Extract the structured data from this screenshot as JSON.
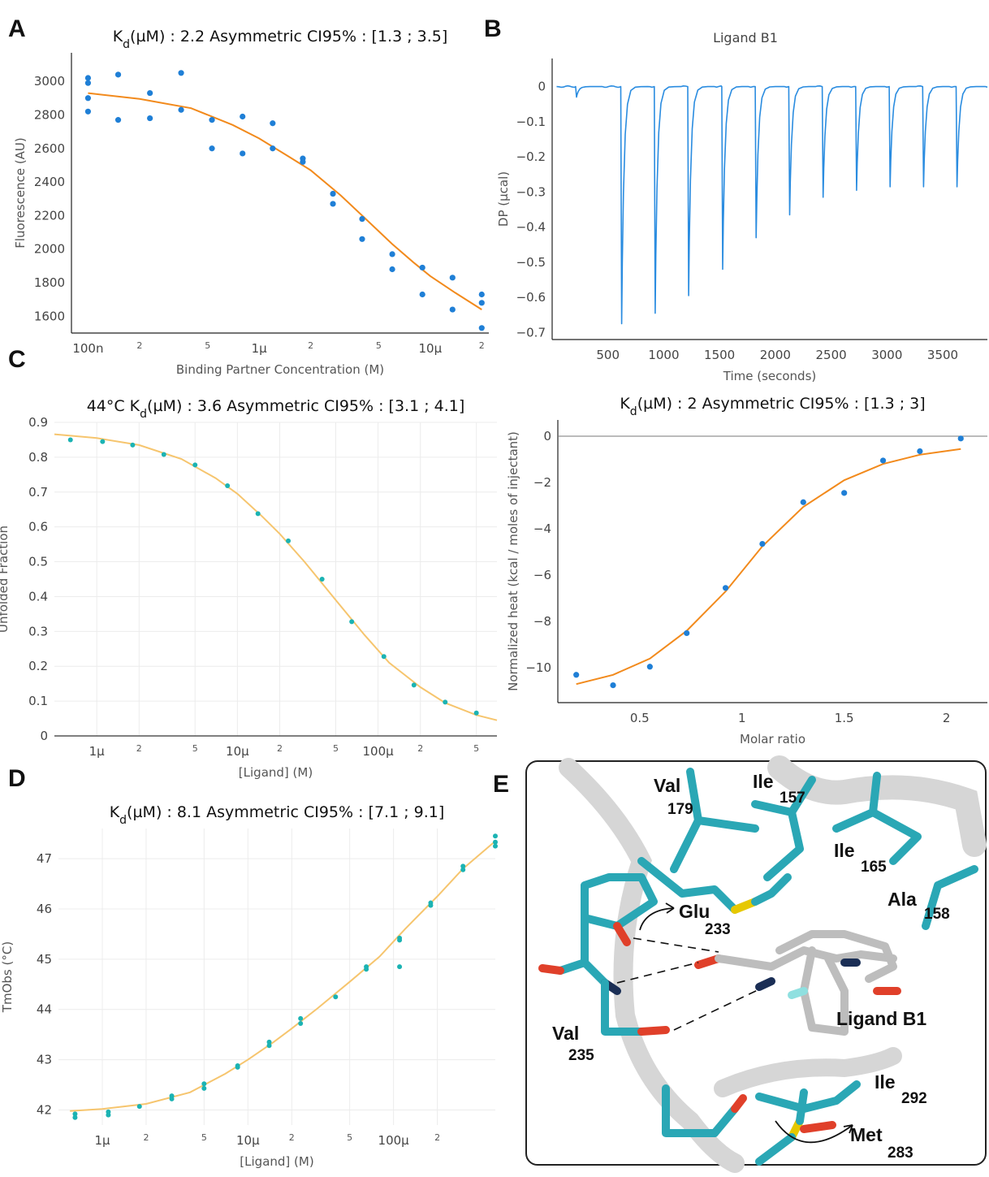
{
  "panels": {
    "a": "A",
    "b": "B",
    "c": "C",
    "d": "D",
    "e": "E"
  },
  "chart_data": [
    {
      "id": "A",
      "type": "scatter",
      "title_pre": "K",
      "title_sub": "d",
      "title_post": "(µM) : 2.2 Asymmetric CI95% : [1.3 ; 3.5]",
      "xlabel": "Binding Partner Concentration (M)",
      "ylabel": "Fluorescence (AU)",
      "x_scale": "log",
      "xlim": [
        8e-08,
        2.2e-05
      ],
      "ylim": [
        1500,
        3170
      ],
      "x_major_ticks": [
        {
          "v": 1e-07,
          "t": "100n"
        },
        {
          "v": 1e-06,
          "t": "1µ"
        },
        {
          "v": 1e-05,
          "t": "10µ"
        }
      ],
      "x_minor_ticks": [
        {
          "v": 2e-07,
          "t": "2"
        },
        {
          "v": 5e-07,
          "t": "5"
        },
        {
          "v": 2e-06,
          "t": "2"
        },
        {
          "v": 5e-06,
          "t": "5"
        },
        {
          "v": 2e-05,
          "t": "2"
        }
      ],
      "y_ticks": [
        {
          "v": 1600,
          "t": "1600"
        },
        {
          "v": 1800,
          "t": "1800"
        },
        {
          "v": 2000,
          "t": "2000"
        },
        {
          "v": 2200,
          "t": "2200"
        },
        {
          "v": 2400,
          "t": "2400"
        },
        {
          "v": 2600,
          "t": "2600"
        },
        {
          "v": 2800,
          "t": "2800"
        },
        {
          "v": 3000,
          "t": "3000"
        }
      ],
      "points": [
        [
          1e-07,
          3020
        ],
        [
          1e-07,
          2990
        ],
        [
          1e-07,
          2900
        ],
        [
          1e-07,
          2820
        ],
        [
          1.5e-07,
          3040
        ],
        [
          1.5e-07,
          2770
        ],
        [
          2.3e-07,
          2930
        ],
        [
          2.3e-07,
          2780
        ],
        [
          3.5e-07,
          3050
        ],
        [
          3.5e-07,
          2830
        ],
        [
          5.3e-07,
          2770
        ],
        [
          5.3e-07,
          2600
        ],
        [
          8e-07,
          2790
        ],
        [
          8e-07,
          2570
        ],
        [
          1.2e-06,
          2750
        ],
        [
          1.2e-06,
          2600
        ],
        [
          1.8e-06,
          2540
        ],
        [
          1.8e-06,
          2520
        ],
        [
          2.7e-06,
          2330
        ],
        [
          2.7e-06,
          2270
        ],
        [
          4e-06,
          2180
        ],
        [
          4e-06,
          2060
        ],
        [
          6e-06,
          1970
        ],
        [
          6e-06,
          1880
        ],
        [
          9e-06,
          1890
        ],
        [
          9e-06,
          1730
        ],
        [
          1.35e-05,
          1830
        ],
        [
          1.35e-05,
          1640
        ],
        [
          2e-05,
          1730
        ],
        [
          2e-05,
          1680
        ],
        [
          2e-05,
          1530
        ]
      ],
      "fit": [
        [
          1e-07,
          2930
        ],
        [
          2e-07,
          2895
        ],
        [
          4e-07,
          2840
        ],
        [
          7e-07,
          2740
        ],
        [
          1e-06,
          2660
        ],
        [
          1.5e-06,
          2550
        ],
        [
          2e-06,
          2470
        ],
        [
          3e-06,
          2320
        ],
        [
          4e-06,
          2200
        ],
        [
          6e-06,
          2030
        ],
        [
          8e-06,
          1920
        ],
        [
          1e-05,
          1840
        ],
        [
          1.4e-05,
          1740
        ],
        [
          2e-05,
          1640
        ]
      ],
      "point_color": "#1f7fd6",
      "fit_color": "#f28a1c"
    },
    {
      "id": "B-thermogram",
      "type": "line",
      "title": "Ligand B1",
      "xlabel": "Time (seconds)",
      "ylabel": "DP (µcal)",
      "xlim": [
        0,
        3900
      ],
      "ylim": [
        -0.72,
        0.08
      ],
      "x_ticks": [
        {
          "v": 500,
          "t": "500"
        },
        {
          "v": 1000,
          "t": "1000"
        },
        {
          "v": 1500,
          "t": "1500"
        },
        {
          "v": 2000,
          "t": "2000"
        },
        {
          "v": 2500,
          "t": "2500"
        },
        {
          "v": 3000,
          "t": "3000"
        },
        {
          "v": 3500,
          "t": "3500"
        }
      ],
      "y_ticks": [
        {
          "v": 0,
          "t": "0"
        },
        {
          "v": -0.1,
          "t": "−0.1"
        },
        {
          "v": -0.2,
          "t": "−0.2"
        },
        {
          "v": -0.3,
          "t": "−0.3"
        },
        {
          "v": -0.4,
          "t": "−0.4"
        },
        {
          "v": -0.5,
          "t": "−0.5"
        },
        {
          "v": -0.6,
          "t": "−0.6"
        },
        {
          "v": -0.7,
          "t": "−0.7"
        }
      ],
      "injections": [
        {
          "t": 210,
          "depth": -0.03
        },
        {
          "t": 615,
          "depth": -0.675
        },
        {
          "t": 915,
          "depth": -0.645
        },
        {
          "t": 1215,
          "depth": -0.595
        },
        {
          "t": 1520,
          "depth": -0.52
        },
        {
          "t": 1820,
          "depth": -0.43
        },
        {
          "t": 2120,
          "depth": -0.365
        },
        {
          "t": 2420,
          "depth": -0.315
        },
        {
          "t": 2720,
          "depth": -0.295
        },
        {
          "t": 3020,
          "depth": -0.285
        },
        {
          "t": 3320,
          "depth": -0.285
        },
        {
          "t": 3620,
          "depth": -0.285
        }
      ],
      "line_color": "#2a8ce0"
    },
    {
      "id": "B-isotherm",
      "type": "scatter",
      "title_pre": "K",
      "title_sub": "d",
      "title_post": "(µM) : 2 Asymmetric CI95% : [1.3 ; 3]",
      "xlabel": "Molar ratio",
      "ylabel": "Normalized heat (kcal / moles of injectant)",
      "xlim": [
        0.1,
        2.2
      ],
      "ylim": [
        -11.5,
        0.7
      ],
      "x_ticks": [
        {
          "v": 0.5,
          "t": "0.5"
        },
        {
          "v": 1,
          "t": "1"
        },
        {
          "v": 1.5,
          "t": "1.5"
        },
        {
          "v": 2,
          "t": "2"
        }
      ],
      "y_ticks": [
        {
          "v": 0,
          "t": "0"
        },
        {
          "v": -2,
          "t": "−2"
        },
        {
          "v": -4,
          "t": "−4"
        },
        {
          "v": -6,
          "t": "−6"
        },
        {
          "v": -8,
          "t": "−8"
        },
        {
          "v": -10,
          "t": "−10"
        }
      ],
      "points": [
        [
          0.19,
          -10.3
        ],
        [
          0.37,
          -10.75
        ],
        [
          0.55,
          -9.95
        ],
        [
          0.73,
          -8.5
        ],
        [
          0.92,
          -6.55
        ],
        [
          1.1,
          -4.65
        ],
        [
          1.3,
          -2.85
        ],
        [
          1.5,
          -2.45
        ],
        [
          1.69,
          -1.05
        ],
        [
          1.87,
          -0.65
        ],
        [
          2.07,
          -0.1
        ]
      ],
      "fit": [
        [
          0.19,
          -10.7
        ],
        [
          0.37,
          -10.3
        ],
        [
          0.55,
          -9.6
        ],
        [
          0.73,
          -8.4
        ],
        [
          0.92,
          -6.7
        ],
        [
          1.1,
          -4.75
        ],
        [
          1.3,
          -3.05
        ],
        [
          1.5,
          -1.9
        ],
        [
          1.69,
          -1.2
        ],
        [
          1.87,
          -0.8
        ],
        [
          2.07,
          -0.55
        ]
      ],
      "point_color": "#1f7fd6",
      "fit_color": "#f28a1c"
    },
    {
      "id": "C",
      "type": "scatter",
      "title_pre": "44°C K",
      "title_sub": "d",
      "title_post": "(µM) : 3.6 Asymmetric CI95% : [3.1 ; 4.1]",
      "xlabel": "[Ligand] (M)",
      "ylabel": "Unfolded Fraction",
      "x_scale": "log",
      "xlim": [
        5e-07,
        0.0007
      ],
      "ylim": [
        0,
        0.9
      ],
      "x_major_ticks": [
        {
          "v": 1e-06,
          "t": "1µ"
        },
        {
          "v": 1e-05,
          "t": "10µ"
        },
        {
          "v": 0.0001,
          "t": "100µ"
        }
      ],
      "x_minor_ticks": [
        {
          "v": 2e-06,
          "t": "2"
        },
        {
          "v": 5e-06,
          "t": "5"
        },
        {
          "v": 2e-05,
          "t": "2"
        },
        {
          "v": 5e-05,
          "t": "5"
        },
        {
          "v": 0.0002,
          "t": "2"
        },
        {
          "v": 0.0005,
          "t": "5"
        }
      ],
      "y_ticks": [
        {
          "v": 0,
          "t": "0"
        },
        {
          "v": 0.1,
          "t": "0.1"
        },
        {
          "v": 0.2,
          "t": "0.2"
        },
        {
          "v": 0.3,
          "t": "0.3"
        },
        {
          "v": 0.4,
          "t": "0.4"
        },
        {
          "v": 0.5,
          "t": "0.5"
        },
        {
          "v": 0.6,
          "t": "0.6"
        },
        {
          "v": 0.7,
          "t": "0.7"
        },
        {
          "v": 0.8,
          "t": "0.8"
        },
        {
          "v": 0.9,
          "t": "0.9"
        }
      ],
      "points": [
        [
          6.5e-07,
          0.85
        ],
        [
          1.1e-06,
          0.845
        ],
        [
          1.8e-06,
          0.835
        ],
        [
          3e-06,
          0.808
        ],
        [
          5e-06,
          0.778
        ],
        [
          8.5e-06,
          0.718
        ],
        [
          1.4e-05,
          0.638
        ],
        [
          2.3e-05,
          0.56
        ],
        [
          4e-05,
          0.45
        ],
        [
          6.5e-05,
          0.328
        ],
        [
          0.00011,
          0.228
        ],
        [
          0.00018,
          0.146
        ],
        [
          0.0003,
          0.097
        ],
        [
          0.0005,
          0.066
        ]
      ],
      "fit": [
        [
          5e-07,
          0.866
        ],
        [
          1e-06,
          0.855
        ],
        [
          2e-06,
          0.835
        ],
        [
          4e-06,
          0.795
        ],
        [
          7e-06,
          0.74
        ],
        [
          1e-05,
          0.695
        ],
        [
          1.5e-05,
          0.63
        ],
        [
          2e-05,
          0.58
        ],
        [
          3e-05,
          0.5
        ],
        [
          5e-05,
          0.39
        ],
        [
          8e-05,
          0.29
        ],
        [
          0.00012,
          0.21
        ],
        [
          0.0002,
          0.14
        ],
        [
          0.0003,
          0.095
        ],
        [
          0.0005,
          0.06
        ],
        [
          0.0007,
          0.045
        ]
      ],
      "point_color": "#1bb3b3",
      "fit_color": "#f6c56e"
    },
    {
      "id": "D",
      "type": "scatter",
      "title_pre": "K",
      "title_sub": "d",
      "title_post": "(µM) : 8.1 Asymmetric CI95% : [7.1 ; 9.1]",
      "xlabel": "[Ligand] (M)",
      "ylabel": "TmObs (°C)",
      "x_scale": "log",
      "xlim": [
        5e-07,
        0.0005
      ],
      "ylim": [
        41.7,
        47.6
      ],
      "x_major_ticks": [
        {
          "v": 1e-06,
          "t": "1µ"
        },
        {
          "v": 1e-05,
          "t": "10µ"
        },
        {
          "v": 0.0001,
          "t": "100µ"
        }
      ],
      "x_minor_ticks": [
        {
          "v": 2e-06,
          "t": "2"
        },
        {
          "v": 5e-06,
          "t": "5"
        },
        {
          "v": 2e-05,
          "t": "2"
        },
        {
          "v": 5e-05,
          "t": "5"
        },
        {
          "v": 0.0002,
          "t": "2"
        }
      ],
      "y_ticks": [
        {
          "v": 42,
          "t": "42"
        },
        {
          "v": 43,
          "t": "43"
        },
        {
          "v": 44,
          "t": "44"
        },
        {
          "v": 45,
          "t": "45"
        },
        {
          "v": 46,
          "t": "46"
        },
        {
          "v": 47,
          "t": "47"
        }
      ],
      "points": [
        [
          6.5e-07,
          41.92
        ],
        [
          6.5e-07,
          41.85
        ],
        [
          1.1e-06,
          41.96
        ],
        [
          1.1e-06,
          41.9
        ],
        [
          1.8e-06,
          42.07
        ],
        [
          3e-06,
          42.28
        ],
        [
          3e-06,
          42.22
        ],
        [
          5e-06,
          42.52
        ],
        [
          5e-06,
          42.43
        ],
        [
          8.5e-06,
          42.88
        ],
        [
          8.5e-06,
          42.85
        ],
        [
          1.4e-05,
          43.35
        ],
        [
          1.4e-05,
          43.28
        ],
        [
          2.3e-05,
          43.82
        ],
        [
          2.3e-05,
          43.72
        ],
        [
          4e-05,
          44.25
        ],
        [
          6.5e-05,
          44.85
        ],
        [
          6.5e-05,
          44.8
        ],
        [
          0.00011,
          45.42
        ],
        [
          0.00011,
          45.38
        ],
        [
          0.00011,
          44.85
        ],
        [
          0.00018,
          46.12
        ],
        [
          0.00018,
          46.07
        ],
        [
          0.0003,
          46.85
        ],
        [
          0.0003,
          46.78
        ],
        [
          0.0005,
          47.45
        ],
        [
          0.0005,
          47.33
        ],
        [
          0.0005,
          47.25
        ]
      ],
      "fit": [
        [
          6e-07,
          41.98
        ],
        [
          1e-06,
          42.02
        ],
        [
          2e-06,
          42.12
        ],
        [
          4e-06,
          42.35
        ],
        [
          7e-06,
          42.72
        ],
        [
          1e-05,
          43.0
        ],
        [
          1.5e-05,
          43.35
        ],
        [
          2e-05,
          43.62
        ],
        [
          3e-05,
          44.02
        ],
        [
          5e-05,
          44.55
        ],
        [
          8e-05,
          45.05
        ],
        [
          0.00012,
          45.6
        ],
        [
          0.0002,
          46.25
        ],
        [
          0.0003,
          46.8
        ],
        [
          0.0005,
          47.35
        ]
      ],
      "point_color": "#1bb3b3",
      "fit_color": "#f6c56e"
    }
  ],
  "structure": {
    "residues": [
      {
        "name": "Val",
        "num": "179"
      },
      {
        "name": "Ile",
        "num": "157"
      },
      {
        "name": "Ile",
        "num": "165"
      },
      {
        "name": "Ala",
        "num": "158"
      },
      {
        "name": "Glu",
        "num": "233"
      },
      {
        "name": "Val",
        "num": "235"
      },
      {
        "name": "Ile",
        "num": "292"
      },
      {
        "name": "Met",
        "num": "283"
      }
    ],
    "ligand_label": "Ligand B1",
    "colors": {
      "protein": "#2aa7b5",
      "ligand": "#bdbdbd",
      "oxygen": "#e0402a",
      "nitrogen": "#1a2e55",
      "sulfur": "#e6c800",
      "fluorine": "#8fe0e0",
      "ribbon": "#d6d6d6"
    }
  }
}
